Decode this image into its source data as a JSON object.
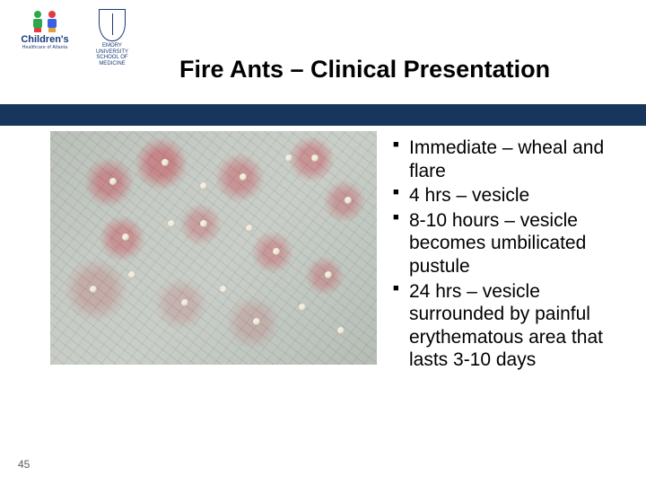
{
  "header": {
    "title": "Fire Ants – Clinical Presentation",
    "blue_bar_color": "#16365c",
    "logos": {
      "childrens": {
        "line1": "Children's",
        "line2": "Healthcare of Atlanta"
      },
      "emory": {
        "line1": "EMORY",
        "line2": "UNIVERSITY",
        "line3": "SCHOOL OF",
        "line4": "MEDICINE"
      }
    }
  },
  "bullets": {
    "items": [
      "Immediate – wheal and flare",
      "4 hrs – vesicle",
      "8-10 hours – vesicle becomes umbilicated pustule",
      "24 hrs – vesicle surrounded by painful erythematous area that lasts 3-10 days"
    ]
  },
  "photo": {
    "description": "close-up skin with multiple fire ant sting pustules and erythema",
    "pustule_positions_pct": [
      [
        18,
        20
      ],
      [
        34,
        12
      ],
      [
        46,
        22
      ],
      [
        58,
        18
      ],
      [
        72,
        10
      ],
      [
        80,
        10
      ],
      [
        90,
        28
      ],
      [
        22,
        44
      ],
      [
        36,
        38
      ],
      [
        46,
        38
      ],
      [
        60,
        40
      ],
      [
        68,
        50
      ],
      [
        84,
        60
      ],
      [
        12,
        66
      ],
      [
        24,
        60
      ],
      [
        40,
        72
      ],
      [
        52,
        66
      ],
      [
        62,
        80
      ],
      [
        76,
        74
      ],
      [
        88,
        84
      ]
    ]
  },
  "page_number": "45",
  "colors": {
    "title": "#000000",
    "body_text": "#000000",
    "pagenum": "#5a5a5a"
  }
}
